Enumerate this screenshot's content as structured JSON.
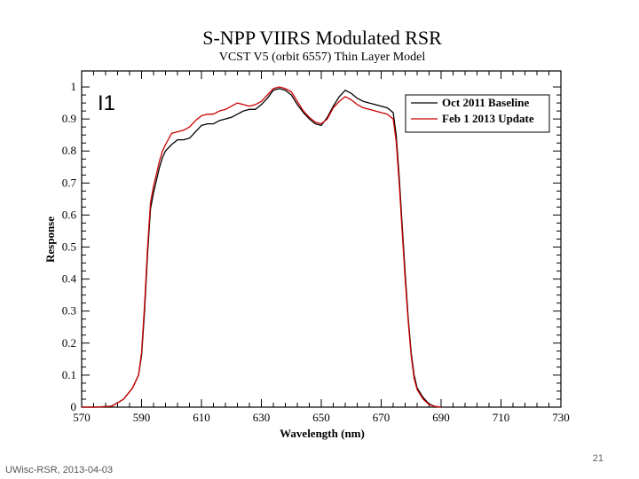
{
  "slide": {
    "footer": "UWisc-RSR, 2013-04-03",
    "page_number": "21",
    "band_label": "I1"
  },
  "chart_data": {
    "type": "line",
    "title": "S-NPP VIIRS Modulated RSR",
    "subtitle": "VCST V5 (orbit 6557) Thin Layer Model",
    "xlabel": "Wavelength (nm)",
    "ylabel": "Response",
    "xlim": [
      570,
      730
    ],
    "ylim": [
      0,
      1.05
    ],
    "xticks": [
      570,
      590,
      610,
      630,
      650,
      670,
      690,
      710,
      730
    ],
    "yticks": [
      0,
      0.1,
      0.2,
      0.3,
      0.4,
      0.5,
      0.6,
      0.7,
      0.8,
      0.9,
      1
    ],
    "ytick_labels": [
      "0",
      "0.1",
      "0.2",
      "0.3",
      "0.4",
      "0.5",
      "0.6",
      "0.7",
      "0.8",
      "0.9",
      "1"
    ],
    "grid": false,
    "legend_position": "top-right",
    "colors": {
      "baseline": "#000000",
      "update": "#cc0000",
      "axis": "#000000"
    },
    "series": [
      {
        "name": "Oct 2011 Baseline",
        "color": "#000000",
        "x": [
          570,
          575,
          580,
          584,
          587,
          589,
          590,
          591,
          592,
          593,
          594,
          595,
          596,
          597,
          598,
          600,
          602,
          604,
          606,
          608,
          610,
          612,
          614,
          616,
          618,
          620,
          622,
          624,
          626,
          628,
          630,
          632,
          634,
          636,
          638,
          640,
          642,
          644,
          646,
          648,
          650,
          652,
          654,
          656,
          658,
          660,
          662,
          664,
          666,
          668,
          670,
          672,
          674,
          675,
          676,
          677,
          678,
          679,
          680,
          681,
          682,
          684,
          686,
          688,
          690
        ],
        "y": [
          0.0,
          0.0,
          0.003,
          0.025,
          0.06,
          0.1,
          0.16,
          0.3,
          0.48,
          0.62,
          0.67,
          0.71,
          0.75,
          0.78,
          0.8,
          0.82,
          0.835,
          0.835,
          0.84,
          0.86,
          0.88,
          0.885,
          0.885,
          0.895,
          0.9,
          0.905,
          0.915,
          0.925,
          0.93,
          0.93,
          0.945,
          0.965,
          0.99,
          0.995,
          0.99,
          0.975,
          0.945,
          0.92,
          0.9,
          0.885,
          0.88,
          0.905,
          0.94,
          0.97,
          0.99,
          0.98,
          0.965,
          0.955,
          0.95,
          0.945,
          0.94,
          0.935,
          0.92,
          0.85,
          0.72,
          0.57,
          0.42,
          0.28,
          0.17,
          0.1,
          0.06,
          0.03,
          0.01,
          0.002,
          0.0
        ]
      },
      {
        "name": "Feb 1 2013 Update",
        "color": "#cc0000",
        "x": [
          570,
          575,
          580,
          584,
          587,
          589,
          590,
          591,
          592,
          593,
          594,
          595,
          596,
          597,
          598,
          600,
          602,
          604,
          606,
          608,
          610,
          612,
          614,
          616,
          618,
          620,
          622,
          624,
          626,
          628,
          630,
          632,
          634,
          636,
          638,
          640,
          642,
          644,
          646,
          648,
          650,
          652,
          654,
          656,
          658,
          660,
          662,
          664,
          666,
          668,
          670,
          672,
          674,
          675,
          676,
          677,
          678,
          679,
          680,
          681,
          682,
          684,
          686,
          688,
          690
        ],
        "y": [
          0.0,
          0.0,
          0.003,
          0.025,
          0.06,
          0.1,
          0.17,
          0.32,
          0.5,
          0.64,
          0.69,
          0.73,
          0.77,
          0.8,
          0.82,
          0.855,
          0.86,
          0.865,
          0.875,
          0.895,
          0.91,
          0.915,
          0.915,
          0.925,
          0.93,
          0.94,
          0.95,
          0.945,
          0.94,
          0.945,
          0.955,
          0.975,
          0.995,
          1.0,
          0.995,
          0.985,
          0.955,
          0.925,
          0.905,
          0.89,
          0.885,
          0.9,
          0.935,
          0.955,
          0.97,
          0.96,
          0.945,
          0.935,
          0.93,
          0.925,
          0.92,
          0.915,
          0.9,
          0.83,
          0.7,
          0.55,
          0.4,
          0.27,
          0.16,
          0.09,
          0.055,
          0.025,
          0.008,
          0.002,
          0.0
        ]
      }
    ]
  }
}
